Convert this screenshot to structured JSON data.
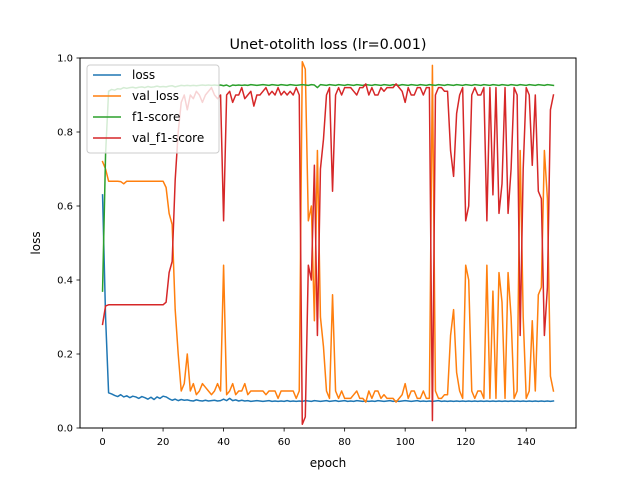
{
  "chart_data": {
    "type": "line",
    "title": "Unet-otolith loss (lr=0.001)",
    "xlabel": "epoch",
    "ylabel": "loss",
    "xlim": [
      -7.45,
      156.45
    ],
    "ylim": [
      0,
      1.0
    ],
    "xticks": [
      0,
      20,
      40,
      60,
      80,
      100,
      120,
      140
    ],
    "yticks": [
      0.0,
      0.2,
      0.4,
      0.6,
      0.8,
      1.0
    ],
    "xtick_labels": [
      "0",
      "20",
      "40",
      "60",
      "80",
      "100",
      "120",
      "140"
    ],
    "ytick_labels": [
      "0.0",
      "0.2",
      "0.4",
      "0.6",
      "0.8",
      "1.0"
    ],
    "grid": false,
    "legend_position": "top-left",
    "series": [
      {
        "name": "loss",
        "color": "#1f77b4",
        "x": [
          0,
          1,
          2,
          3,
          4,
          5,
          6,
          7,
          8,
          9,
          10,
          11,
          12,
          13,
          14,
          15,
          16,
          17,
          18,
          19,
          20,
          21,
          22,
          23,
          24,
          25,
          26,
          27,
          28,
          29,
          30,
          31,
          32,
          33,
          34,
          35,
          36,
          37,
          38,
          39,
          40,
          41,
          42,
          43,
          44,
          45,
          46,
          47,
          48,
          49,
          50,
          51,
          52,
          53,
          54,
          55,
          56,
          57,
          58,
          59,
          60,
          61,
          62,
          63,
          64,
          65,
          66,
          67,
          68,
          69,
          70,
          71,
          72,
          73,
          74,
          75,
          76,
          77,
          78,
          79,
          80,
          81,
          82,
          83,
          84,
          85,
          86,
          87,
          88,
          89,
          90,
          91,
          92,
          93,
          94,
          95,
          96,
          97,
          98,
          99,
          100,
          101,
          102,
          103,
          104,
          105,
          106,
          107,
          108,
          109,
          110,
          111,
          112,
          113,
          114,
          115,
          116,
          117,
          118,
          119,
          120,
          121,
          122,
          123,
          124,
          125,
          126,
          127,
          128,
          129,
          130,
          131,
          132,
          133,
          134,
          135,
          136,
          137,
          138,
          139,
          140,
          141,
          142,
          143,
          144,
          145,
          146,
          147,
          148,
          149
        ],
        "values": [
          0.63,
          0.3,
          0.095,
          0.092,
          0.088,
          0.085,
          0.09,
          0.084,
          0.087,
          0.082,
          0.086,
          0.084,
          0.08,
          0.085,
          0.082,
          0.078,
          0.083,
          0.077,
          0.084,
          0.08,
          0.086,
          0.084,
          0.079,
          0.075,
          0.078,
          0.074,
          0.077,
          0.075,
          0.076,
          0.074,
          0.073,
          0.076,
          0.074,
          0.073,
          0.075,
          0.073,
          0.074,
          0.075,
          0.073,
          0.074,
          0.078,
          0.074,
          0.08,
          0.074,
          0.076,
          0.073,
          0.075,
          0.073,
          0.074,
          0.072,
          0.073,
          0.074,
          0.073,
          0.072,
          0.073,
          0.074,
          0.072,
          0.073,
          0.072,
          0.073,
          0.072,
          0.074,
          0.072,
          0.073,
          0.072,
          0.073,
          0.072,
          0.074,
          0.073,
          0.072,
          0.074,
          0.073,
          0.072,
          0.073,
          0.074,
          0.072,
          0.073,
          0.074,
          0.072,
          0.073,
          0.074,
          0.072,
          0.073,
          0.072,
          0.074,
          0.073,
          0.072,
          0.073,
          0.072,
          0.073,
          0.072,
          0.074,
          0.073,
          0.072,
          0.073,
          0.074,
          0.072,
          0.073,
          0.072,
          0.073,
          0.074,
          0.073,
          0.072,
          0.073,
          0.074,
          0.072,
          0.073,
          0.072,
          0.073,
          0.072,
          0.073,
          0.074,
          0.072,
          0.073,
          0.072,
          0.073,
          0.072,
          0.073,
          0.072,
          0.073,
          0.072,
          0.073,
          0.072,
          0.073,
          0.072,
          0.073,
          0.072,
          0.073,
          0.072,
          0.073,
          0.072,
          0.073,
          0.072,
          0.073,
          0.072,
          0.073,
          0.072,
          0.073,
          0.072,
          0.073,
          0.072,
          0.073,
          0.072,
          0.073,
          0.072,
          0.073,
          0.072,
          0.073,
          0.072,
          0.073
        ]
      },
      {
        "name": "val_loss",
        "color": "#ff7f0e",
        "x": [
          0,
          1,
          2,
          3,
          4,
          5,
          6,
          7,
          8,
          9,
          10,
          11,
          12,
          13,
          14,
          15,
          16,
          17,
          18,
          19,
          20,
          21,
          22,
          23,
          24,
          25,
          26,
          27,
          28,
          29,
          30,
          31,
          32,
          33,
          34,
          35,
          36,
          37,
          38,
          39,
          40,
          41,
          42,
          43,
          44,
          45,
          46,
          47,
          48,
          49,
          50,
          51,
          52,
          53,
          54,
          55,
          56,
          57,
          58,
          59,
          60,
          61,
          62,
          63,
          64,
          65,
          66,
          67,
          68,
          69,
          70,
          71,
          72,
          73,
          74,
          75,
          76,
          77,
          78,
          79,
          80,
          81,
          82,
          83,
          84,
          85,
          86,
          87,
          88,
          89,
          90,
          91,
          92,
          93,
          94,
          95,
          96,
          97,
          98,
          99,
          100,
          101,
          102,
          103,
          104,
          105,
          106,
          107,
          108,
          109,
          110,
          111,
          112,
          113,
          114,
          115,
          116,
          117,
          118,
          119,
          120,
          121,
          122,
          123,
          124,
          125,
          126,
          127,
          128,
          129,
          130,
          131,
          132,
          133,
          134,
          135,
          136,
          137,
          138,
          139,
          140,
          141,
          142,
          143,
          144,
          145,
          146,
          147,
          148,
          149
        ],
        "values": [
          0.72,
          0.7,
          0.667,
          0.667,
          0.667,
          0.667,
          0.666,
          0.66,
          0.667,
          0.667,
          0.667,
          0.667,
          0.667,
          0.667,
          0.667,
          0.667,
          0.667,
          0.667,
          0.667,
          0.667,
          0.667,
          0.65,
          0.58,
          0.55,
          0.32,
          0.2,
          0.1,
          0.12,
          0.2,
          0.1,
          0.12,
          0.09,
          0.1,
          0.12,
          0.11,
          0.1,
          0.09,
          0.1,
          0.12,
          0.1,
          0.44,
          0.09,
          0.1,
          0.12,
          0.09,
          0.1,
          0.1,
          0.12,
          0.09,
          0.1,
          0.1,
          0.1,
          0.1,
          0.1,
          0.09,
          0.1,
          0.1,
          0.1,
          0.08,
          0.1,
          0.1,
          0.1,
          0.1,
          0.1,
          0.08,
          0.1,
          0.99,
          0.97,
          0.56,
          0.6,
          0.29,
          0.75,
          0.3,
          0.22,
          0.1,
          0.08,
          0.36,
          0.1,
          0.08,
          0.1,
          0.08,
          0.08,
          0.08,
          0.09,
          0.1,
          0.08,
          0.08,
          0.07,
          0.1,
          0.08,
          0.1,
          0.1,
          0.08,
          0.09,
          0.08,
          0.08,
          0.08,
          0.07,
          0.08,
          0.09,
          0.12,
          0.08,
          0.1,
          0.1,
          0.08,
          0.08,
          0.1,
          0.08,
          0.08,
          0.98,
          0.1,
          0.08,
          0.08,
          0.09,
          0.09,
          0.25,
          0.32,
          0.15,
          0.1,
          0.08,
          0.44,
          0.4,
          0.1,
          0.08,
          0.1,
          0.1,
          0.08,
          0.44,
          0.08,
          0.37,
          0.08,
          0.42,
          0.34,
          0.08,
          0.42,
          0.3,
          0.08,
          0.1,
          0.75,
          0.3,
          0.08,
          0.1,
          0.29,
          0.1,
          0.36,
          0.38,
          0.75,
          0.62,
          0.14,
          0.1
        ]
      },
      {
        "name": "f1-score",
        "color": "#2ca02c",
        "x": [
          0,
          1,
          2,
          3,
          4,
          5,
          6,
          7,
          8,
          9,
          10,
          11,
          12,
          13,
          14,
          15,
          16,
          17,
          18,
          19,
          20,
          21,
          22,
          23,
          24,
          25,
          26,
          27,
          28,
          29,
          30,
          31,
          32,
          33,
          34,
          35,
          36,
          37,
          38,
          39,
          40,
          41,
          42,
          43,
          44,
          45,
          46,
          47,
          48,
          49,
          50,
          51,
          52,
          53,
          54,
          55,
          56,
          57,
          58,
          59,
          60,
          61,
          62,
          63,
          64,
          65,
          66,
          67,
          68,
          69,
          70,
          71,
          72,
          73,
          74,
          75,
          76,
          77,
          78,
          79,
          80,
          81,
          82,
          83,
          84,
          85,
          86,
          87,
          88,
          89,
          90,
          91,
          92,
          93,
          94,
          95,
          96,
          97,
          98,
          99,
          100,
          101,
          102,
          103,
          104,
          105,
          106,
          107,
          108,
          109,
          110,
          111,
          112,
          113,
          114,
          115,
          116,
          117,
          118,
          119,
          120,
          121,
          122,
          123,
          124,
          125,
          126,
          127,
          128,
          129,
          130,
          131,
          132,
          133,
          134,
          135,
          136,
          137,
          138,
          139,
          140,
          141,
          142,
          143,
          144,
          145,
          146,
          147,
          148,
          149
        ],
        "values": [
          0.37,
          0.74,
          0.91,
          0.915,
          0.913,
          0.917,
          0.916,
          0.92,
          0.918,
          0.92,
          0.921,
          0.919,
          0.921,
          0.922,
          0.92,
          0.923,
          0.921,
          0.922,
          0.924,
          0.922,
          0.923,
          0.922,
          0.924,
          0.925,
          0.922,
          0.924,
          0.926,
          0.925,
          0.926,
          0.925,
          0.926,
          0.925,
          0.926,
          0.927,
          0.926,
          0.927,
          0.926,
          0.927,
          0.926,
          0.927,
          0.925,
          0.927,
          0.923,
          0.927,
          0.926,
          0.927,
          0.926,
          0.927,
          0.926,
          0.928,
          0.927,
          0.926,
          0.927,
          0.928,
          0.927,
          0.926,
          0.928,
          0.927,
          0.926,
          0.928,
          0.927,
          0.926,
          0.928,
          0.927,
          0.926,
          0.927,
          0.928,
          0.927,
          0.926,
          0.928,
          0.927,
          0.92,
          0.928,
          0.927,
          0.926,
          0.928,
          0.927,
          0.926,
          0.928,
          0.927,
          0.926,
          0.928,
          0.927,
          0.926,
          0.928,
          0.927,
          0.926,
          0.928,
          0.927,
          0.926,
          0.928,
          0.927,
          0.926,
          0.928,
          0.927,
          0.926,
          0.928,
          0.927,
          0.926,
          0.928,
          0.927,
          0.926,
          0.928,
          0.927,
          0.926,
          0.928,
          0.927,
          0.926,
          0.928,
          0.927,
          0.926,
          0.928,
          0.927,
          0.926,
          0.928,
          0.927,
          0.926,
          0.928,
          0.927,
          0.926,
          0.928,
          0.927,
          0.926,
          0.928,
          0.927,
          0.926,
          0.928,
          0.927,
          0.926,
          0.928,
          0.927,
          0.926,
          0.928,
          0.927,
          0.926,
          0.928,
          0.927,
          0.926,
          0.928,
          0.927,
          0.926,
          0.928,
          0.927,
          0.926,
          0.928,
          0.927,
          0.926,
          0.928,
          0.927,
          0.926
        ]
      },
      {
        "name": "val_f1-score",
        "color": "#d62728",
        "x": [
          0,
          1,
          2,
          3,
          4,
          5,
          6,
          7,
          8,
          9,
          10,
          11,
          12,
          13,
          14,
          15,
          16,
          17,
          18,
          19,
          20,
          21,
          22,
          23,
          24,
          25,
          26,
          27,
          28,
          29,
          30,
          31,
          32,
          33,
          34,
          35,
          36,
          37,
          38,
          39,
          40,
          41,
          42,
          43,
          44,
          45,
          46,
          47,
          48,
          49,
          50,
          51,
          52,
          53,
          54,
          55,
          56,
          57,
          58,
          59,
          60,
          61,
          62,
          63,
          64,
          65,
          66,
          67,
          68,
          69,
          70,
          71,
          72,
          73,
          74,
          75,
          76,
          77,
          78,
          79,
          80,
          81,
          82,
          83,
          84,
          85,
          86,
          87,
          88,
          89,
          90,
          91,
          92,
          93,
          94,
          95,
          96,
          97,
          98,
          99,
          100,
          101,
          102,
          103,
          104,
          105,
          106,
          107,
          108,
          109,
          110,
          111,
          112,
          113,
          114,
          115,
          116,
          117,
          118,
          119,
          120,
          121,
          122,
          123,
          124,
          125,
          126,
          127,
          128,
          129,
          130,
          131,
          132,
          133,
          134,
          135,
          136,
          137,
          138,
          139,
          140,
          141,
          142,
          143,
          144,
          145,
          146,
          147,
          148,
          149
        ],
        "values": [
          0.28,
          0.33,
          0.333,
          0.333,
          0.333,
          0.333,
          0.333,
          0.333,
          0.333,
          0.333,
          0.333,
          0.333,
          0.333,
          0.333,
          0.333,
          0.333,
          0.333,
          0.333,
          0.333,
          0.333,
          0.333,
          0.34,
          0.42,
          0.45,
          0.67,
          0.8,
          0.88,
          0.9,
          0.86,
          0.9,
          0.89,
          0.91,
          0.9,
          0.88,
          0.9,
          0.91,
          0.92,
          0.9,
          0.89,
          0.9,
          0.56,
          0.9,
          0.91,
          0.88,
          0.9,
          0.9,
          0.92,
          0.89,
          0.9,
          0.91,
          0.87,
          0.9,
          0.9,
          0.91,
          0.92,
          0.9,
          0.91,
          0.9,
          0.92,
          0.9,
          0.91,
          0.9,
          0.91,
          0.9,
          0.92,
          0.9,
          0.01,
          0.03,
          0.44,
          0.4,
          0.71,
          0.25,
          0.7,
          0.78,
          0.9,
          0.92,
          0.64,
          0.9,
          0.92,
          0.9,
          0.92,
          0.92,
          0.92,
          0.91,
          0.9,
          0.92,
          0.92,
          0.93,
          0.9,
          0.92,
          0.9,
          0.9,
          0.92,
          0.91,
          0.92,
          0.92,
          0.92,
          0.93,
          0.92,
          0.91,
          0.88,
          0.92,
          0.9,
          0.9,
          0.92,
          0.92,
          0.9,
          0.92,
          0.92,
          0.02,
          0.9,
          0.92,
          0.92,
          0.91,
          0.91,
          0.75,
          0.68,
          0.85,
          0.9,
          0.92,
          0.56,
          0.6,
          0.9,
          0.92,
          0.9,
          0.9,
          0.92,
          0.56,
          0.92,
          0.63,
          0.92,
          0.58,
          0.66,
          0.92,
          0.58,
          0.7,
          0.92,
          0.9,
          0.25,
          0.7,
          0.92,
          0.9,
          0.71,
          0.9,
          0.64,
          0.62,
          0.25,
          0.38,
          0.86,
          0.9
        ]
      }
    ]
  }
}
